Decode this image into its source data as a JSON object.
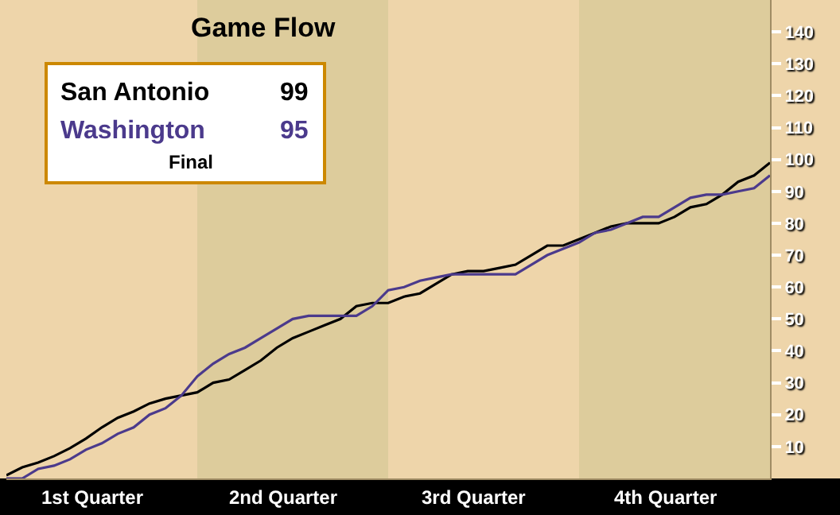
{
  "chart_data": {
    "type": "line",
    "title": "Game Flow",
    "legend": false,
    "grid": false,
    "marker": "none",
    "line_style": "solid",
    "tick_labels": "y",
    "categories": [
      null,
      null,
      null,
      null,
      null,
      null,
      null,
      null,
      null,
      null,
      null,
      null,
      null,
      null,
      null,
      null,
      null,
      null,
      null,
      null,
      null,
      null,
      null,
      null,
      null,
      null,
      null,
      null,
      null,
      null,
      null,
      null,
      null,
      null,
      null,
      null,
      null,
      null,
      null,
      null,
      null,
      null,
      null,
      null,
      null,
      null,
      null,
      null,
      null
    ],
    "ylim": [
      0,
      150
    ],
    "yticks": [
      10,
      20,
      30,
      40,
      50,
      60,
      70,
      80,
      90,
      100,
      110,
      120,
      130,
      140
    ],
    "annotations": [
      "99",
      "95",
      "Final",
      "1st Quarter",
      "2nd Quarter",
      "3rd Quarter",
      "4th Quarter"
    ],
    "series": [
      {
        "name": "San Antonio",
        "color": "#000000",
        "values": [
          1,
          3.5,
          5,
          7,
          9.5,
          12.5,
          16,
          19,
          21,
          23.5,
          25,
          26,
          27,
          30,
          31,
          34,
          37,
          41,
          44,
          46,
          48,
          50,
          54,
          55,
          55,
          57,
          58,
          61,
          64,
          65,
          65,
          66,
          67,
          70,
          73,
          73,
          75,
          77,
          79,
          80,
          80,
          80,
          82,
          85,
          86,
          89,
          93,
          95,
          99
        ]
      },
      {
        "name": "Washington",
        "color": "#4b3a8c",
        "values": [
          0,
          0,
          3,
          4,
          6,
          9,
          11,
          14,
          16,
          20,
          22,
          26,
          32,
          36,
          39,
          41,
          44,
          47,
          50,
          51,
          51,
          51,
          51,
          54,
          59,
          60,
          62,
          63,
          64,
          64,
          64,
          64,
          64,
          67,
          70,
          72,
          74,
          77,
          78,
          80,
          82,
          82,
          85,
          88,
          89,
          89,
          90,
          91,
          95
        ]
      }
    ]
  }
}
